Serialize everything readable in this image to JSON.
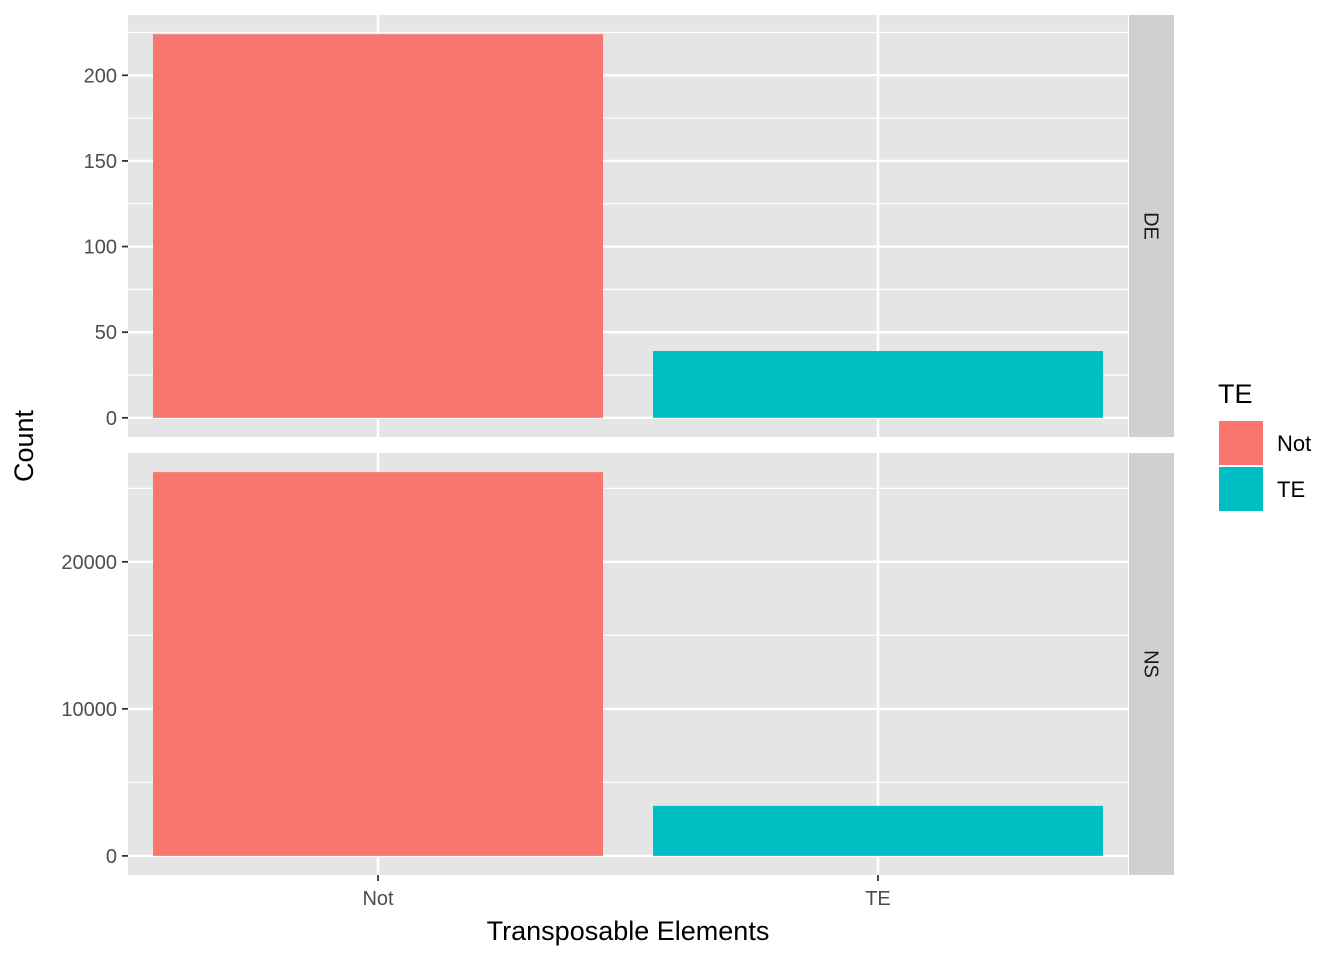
{
  "chart_data": {
    "type": "bar",
    "xlabel": "Transposable Elements",
    "ylabel": "Count",
    "categories": [
      "Not",
      "TE"
    ],
    "facet_by": "DE/NS",
    "legend": {
      "title": "TE",
      "position": "right",
      "entries": [
        {
          "label": "Not",
          "color": "#F8766D"
        },
        {
          "label": "TE",
          "color": "#00BFC4"
        }
      ]
    },
    "panel_background": "#E5E5E5",
    "strip_background": "#D0D0D0",
    "grid": true,
    "panels": [
      {
        "strip": "DE",
        "values": [
          224,
          39
        ],
        "ylim": [
          -11.2,
          235.2
        ],
        "yticks": [
          0,
          50,
          100,
          150,
          200
        ],
        "ytick_labels": [
          "0",
          "50",
          "100",
          "150",
          "200"
        ],
        "yminor": [
          25,
          75,
          125,
          175,
          225
        ]
      },
      {
        "strip": "NS",
        "values": [
          26100,
          3400
        ],
        "ylim": [
          -1300,
          27400
        ],
        "yticks": [
          0,
          10000,
          20000
        ],
        "ytick_labels": [
          "0",
          "10000",
          "20000"
        ],
        "yminor": [
          5000,
          15000,
          25000
        ]
      }
    ]
  }
}
